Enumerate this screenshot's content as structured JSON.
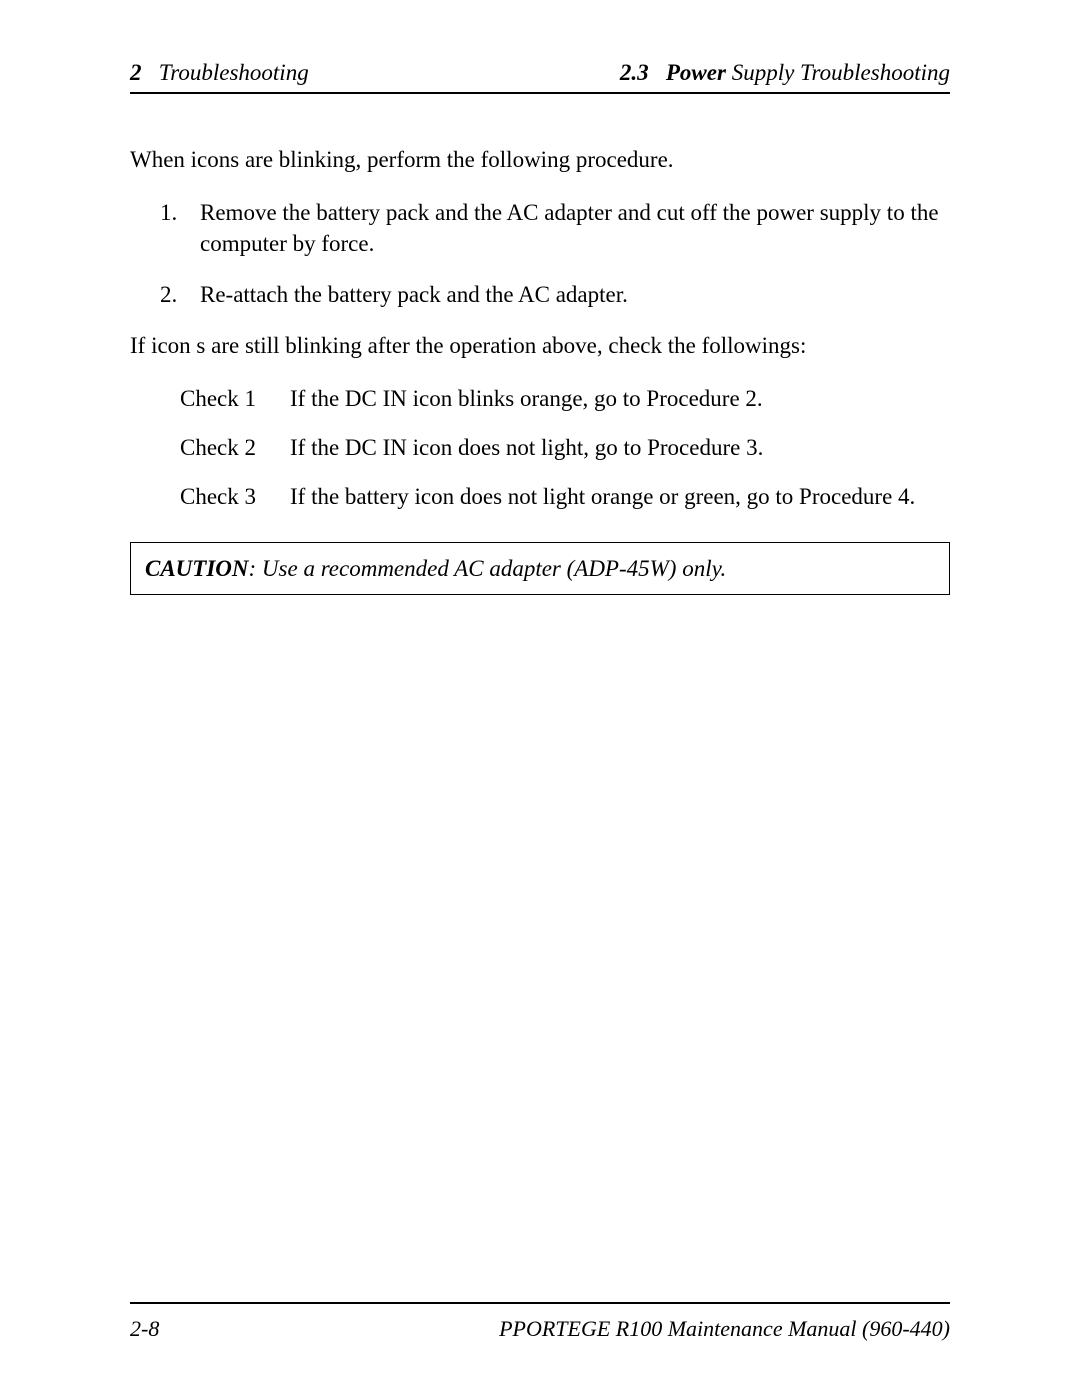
{
  "header": {
    "left_num": "2",
    "left_text": "Troubleshooting",
    "right_num": "2.3",
    "right_bold": "Power",
    "right_text": "Supply Troubleshooting"
  },
  "content": {
    "intro": "When icons are blinking, perform the following procedure.",
    "steps": [
      {
        "num": "1.",
        "text": "Remove the battery pack and the AC adapter and cut off the power supply to the computer by force."
      },
      {
        "num": "2.",
        "text": "Re-attach the battery pack and the AC adapter."
      }
    ],
    "followup": "If icon s are still blinking after the operation above, check the followings:",
    "checks": [
      {
        "label": "Check 1",
        "text": "If the DC IN icon blinks orange, go to Procedure 2."
      },
      {
        "label": "Check 2",
        "text": "If the DC IN icon does not light, go to Procedure 3."
      },
      {
        "label": "Check 3",
        "text": "If the battery icon does not light orange or green, go to Procedure 4."
      }
    ],
    "caution_label": "CAUTION",
    "caution_text": ": Use a recommended AC adapter (ADP-45W) only."
  },
  "footer": {
    "page": "2-8",
    "manual": "PPORTEGE R100 Maintenance Manual (960-440)"
  }
}
